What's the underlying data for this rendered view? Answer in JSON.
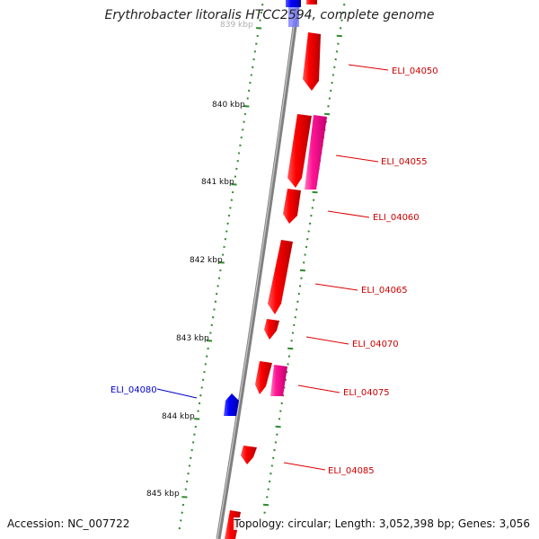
{
  "title": "Erythrobacter litoralis HTCC2594, complete genome",
  "footer": {
    "accession": "Accession: NC_007722",
    "summary": "Topology: circular; Length: 3,052,398 bp; Genes: 3,056"
  },
  "colors": {
    "forward_gene": "#ff0000",
    "forward_gene_alt": "#ff1493",
    "reverse_gene": "#0000ff",
    "backbone": "#808080",
    "ruler": "#2e8b2e",
    "forward_label": "#cc0000",
    "reverse_label": "#0000cc"
  },
  "ruler_labels": [
    "839 kbp",
    "840 kbp",
    "841 kbp",
    "842 kbp",
    "843 kbp",
    "844 kbp",
    "845 kbp"
  ],
  "gene_labels": [
    {
      "name": "ELI_04050",
      "strand": "forward"
    },
    {
      "name": "ELI_04055",
      "strand": "forward"
    },
    {
      "name": "ELI_04060",
      "strand": "forward"
    },
    {
      "name": "ELI_04065",
      "strand": "forward"
    },
    {
      "name": "ELI_04070",
      "strand": "forward"
    },
    {
      "name": "ELI_04075",
      "strand": "forward"
    },
    {
      "name": "ELI_04080",
      "strand": "reverse"
    },
    {
      "name": "ELI_04085",
      "strand": "forward"
    }
  ]
}
